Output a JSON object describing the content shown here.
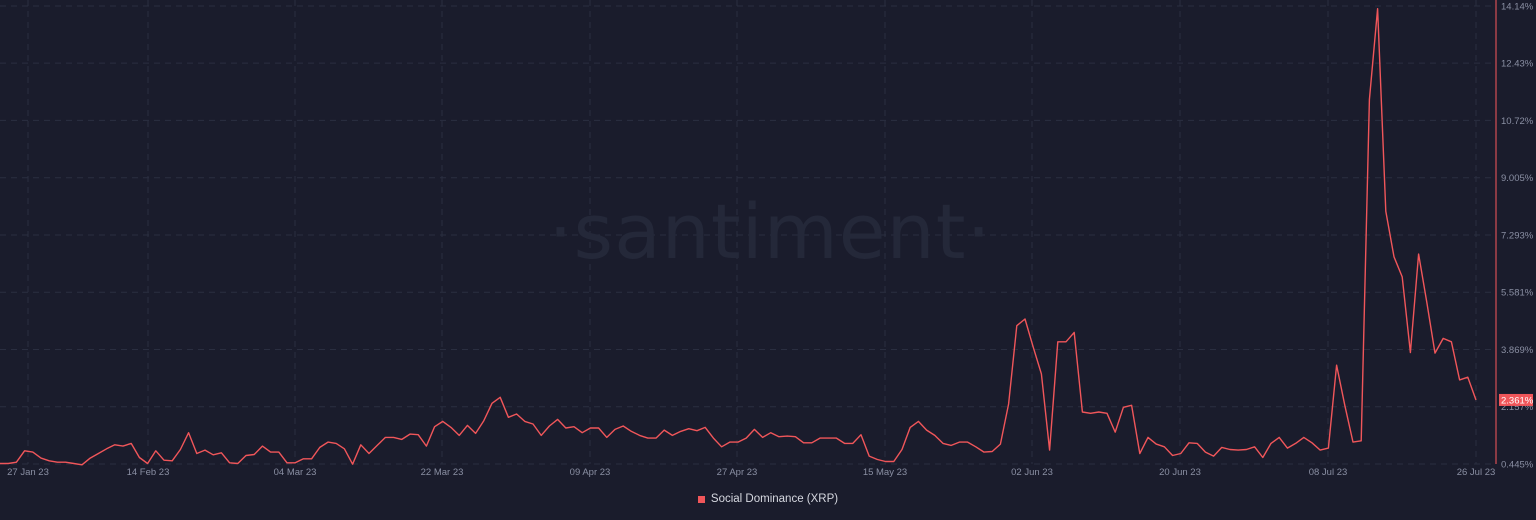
{
  "chart_data": {
    "type": "line",
    "title": "",
    "watermark": "·santiment·",
    "xlabel": "",
    "ylabel": "",
    "ylim": [
      0.445,
      14.14
    ],
    "y_ticks": [
      "14.14%",
      "12.43%",
      "10.72%",
      "9.005%",
      "7.293%",
      "5.581%",
      "3.869%",
      "2.157%",
      "0.445%"
    ],
    "y_tick_values": [
      14.14,
      12.43,
      10.72,
      9.005,
      7.293,
      5.581,
      3.869,
      2.157,
      0.445
    ],
    "x_ticks": [
      "27 Jan 23",
      "14 Feb 23",
      "04 Mar 23",
      "22 Mar 23",
      "09 Apr 23",
      "27 Apr 23",
      "15 May 23",
      "02 Jun 23",
      "20 Jun 23",
      "08 Jul 23",
      "26 Jul 23"
    ],
    "grid": true,
    "legend_position": "bottom-center",
    "current_value_label": "2.361%",
    "series": [
      {
        "name": "Social Dominance (XRP)",
        "color": "#f0565a",
        "start_date": "24 Jan 23",
        "interval": "1d",
        "values": [
          0.46,
          0.46,
          0.5,
          0.84,
          0.8,
          0.62,
          0.54,
          0.5,
          0.5,
          0.46,
          0.42,
          0.62,
          0.76,
          0.9,
          1.02,
          0.98,
          1.06,
          0.64,
          0.46,
          0.84,
          0.56,
          0.54,
          0.88,
          1.38,
          0.76,
          0.86,
          0.72,
          0.78,
          0.48,
          0.46,
          0.7,
          0.73,
          0.98,
          0.8,
          0.8,
          0.48,
          0.48,
          0.6,
          0.6,
          0.94,
          1.1,
          1.06,
          0.9,
          0.44,
          1.02,
          0.76,
          1.0,
          1.24,
          1.24,
          1.18,
          1.34,
          1.32,
          0.98,
          1.56,
          1.72,
          1.54,
          1.3,
          1.6,
          1.36,
          1.74,
          2.26,
          2.44,
          1.84,
          1.94,
          1.72,
          1.64,
          1.3,
          1.58,
          1.78,
          1.52,
          1.56,
          1.38,
          1.52,
          1.52,
          1.24,
          1.48,
          1.58,
          1.42,
          1.3,
          1.22,
          1.22,
          1.46,
          1.3,
          1.42,
          1.5,
          1.44,
          1.54,
          1.22,
          0.96,
          1.1,
          1.1,
          1.22,
          1.48,
          1.24,
          1.38,
          1.26,
          1.28,
          1.26,
          1.08,
          1.08,
          1.22,
          1.22,
          1.22,
          1.06,
          1.06,
          1.32,
          0.68,
          0.58,
          0.52,
          0.52,
          0.88,
          1.54,
          1.72,
          1.46,
          1.3,
          1.06,
          1.0,
          1.1,
          1.1,
          0.96,
          0.8,
          0.82,
          1.04,
          2.24,
          4.58,
          4.78,
          3.94,
          3.14,
          0.86,
          4.1,
          4.1,
          4.38,
          2.0,
          1.96,
          2.0,
          1.96,
          1.4,
          2.14,
          2.2,
          0.76,
          1.24,
          1.04,
          0.96,
          0.7,
          0.76,
          1.08,
          1.06,
          0.8,
          0.68,
          0.94,
          0.88,
          0.86,
          0.88,
          0.96,
          0.64,
          1.06,
          1.24,
          0.92,
          1.06,
          1.24,
          1.08,
          0.86,
          0.92,
          3.4,
          2.2,
          1.1,
          1.14,
          11.34,
          14.06,
          8.0,
          6.64,
          6.04,
          3.78,
          6.72,
          5.28,
          3.76,
          4.2,
          4.1,
          2.96,
          3.04,
          2.36
        ]
      }
    ]
  },
  "legend": {
    "label": "Social Dominance (XRP)",
    "color": "#f0565a"
  },
  "colors": {
    "background": "#1a1c2c",
    "grid": "#2a2e40",
    "axis_line": "#8a3a44",
    "tick_text": "#8a8fa3",
    "line": "#f0565a",
    "badge_bg": "#f0565a"
  }
}
